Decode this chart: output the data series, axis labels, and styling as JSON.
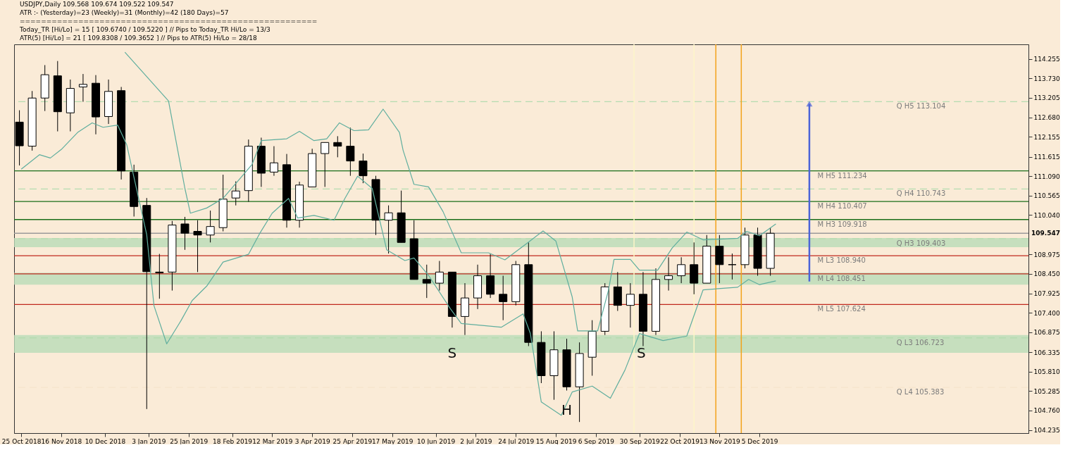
{
  "chart_data": {
    "type": "candlestick",
    "title": "USDJPY,Daily  109.568 109.674 109.522 109.547",
    "annotations": [
      "ATR :- (Yesterday)=23      (Weekly)=31      (Monthly)=42      (180 Days)=57",
      "========================================================",
      "Today_TR [Hi/Lo] = 15 [ 109.6740 / 109.5220 ]   // Pips to Today_TR Hi/Lo  = 13/3",
      "ATR(5) [Hi/Lo] = 21 [ 109.8308 / 109.3652 ]  //  Pips to ATR(5) Hi/Lo      = 28/18",
      {
        "text": "S",
        "x": "2019-06-19",
        "y": 106.3
      },
      {
        "text": "H",
        "x": "2019-08-21",
        "y": 104.75
      },
      {
        "text": "S",
        "x": "2019-10-01",
        "y": 106.3
      }
    ],
    "x": [
      "2018-10-24",
      "2018-10-31",
      "2018-11-07",
      "2018-11-14",
      "2018-11-21",
      "2018-11-28",
      "2018-12-05",
      "2018-12-12",
      "2018-12-19",
      "2018-12-26",
      "2019-01-02",
      "2019-01-09",
      "2019-01-16",
      "2019-01-23",
      "2019-01-30",
      "2019-02-06",
      "2019-02-13",
      "2019-02-20",
      "2019-02-27",
      "2019-03-06",
      "2019-03-13",
      "2019-03-20",
      "2019-03-27",
      "2019-04-03",
      "2019-04-10",
      "2019-04-17",
      "2019-04-24",
      "2019-05-01",
      "2019-05-08",
      "2019-05-15",
      "2019-05-22",
      "2019-05-29",
      "2019-06-05",
      "2019-06-12",
      "2019-06-19",
      "2019-06-26",
      "2019-07-03",
      "2019-07-10",
      "2019-07-17",
      "2019-07-24",
      "2019-07-31",
      "2019-08-07",
      "2019-08-14",
      "2019-08-21",
      "2019-08-28",
      "2019-09-04",
      "2019-09-11",
      "2019-09-18",
      "2019-09-25",
      "2019-10-02",
      "2019-10-09",
      "2019-10-16",
      "2019-10-23",
      "2019-10-30",
      "2019-11-06",
      "2019-11-13",
      "2019-11-20",
      "2019-11-27",
      "2019-12-04",
      "2019-12-11"
    ],
    "ohlc": [
      [
        112.55,
        112.87,
        111.38,
        111.91
      ],
      [
        111.9,
        113.39,
        111.78,
        113.2
      ],
      [
        113.2,
        114.09,
        112.85,
        113.83
      ],
      [
        113.8,
        114.2,
        112.3,
        112.83
      ],
      [
        112.8,
        113.7,
        112.3,
        113.46
      ],
      [
        113.5,
        113.85,
        113.1,
        113.57
      ],
      [
        113.6,
        113.82,
        112.22,
        112.69
      ],
      [
        112.7,
        113.7,
        112.5,
        113.38
      ],
      [
        113.4,
        113.5,
        111.0,
        111.23
      ],
      [
        111.2,
        111.4,
        110.0,
        110.27
      ],
      [
        110.3,
        110.5,
        104.8,
        108.51
      ],
      [
        108.5,
        108.99,
        107.78,
        108.48
      ],
      [
        108.5,
        109.88,
        108.0,
        109.77
      ],
      [
        109.8,
        109.99,
        109.1,
        109.55
      ],
      [
        109.6,
        109.9,
        108.5,
        109.5
      ],
      [
        109.5,
        110.16,
        109.3,
        109.73
      ],
      [
        109.7,
        111.13,
        109.6,
        110.47
      ],
      [
        110.5,
        110.95,
        110.3,
        110.69
      ],
      [
        110.7,
        112.08,
        110.4,
        111.9
      ],
      [
        111.9,
        112.13,
        110.8,
        111.17
      ],
      [
        111.2,
        111.9,
        111.1,
        111.45
      ],
      [
        111.4,
        111.69,
        109.7,
        109.9
      ],
      [
        109.9,
        110.94,
        109.7,
        110.85
      ],
      [
        110.8,
        111.83,
        110.8,
        111.7
      ],
      [
        111.7,
        112.0,
        110.8,
        112.0
      ],
      [
        112.0,
        112.17,
        111.6,
        111.9
      ],
      [
        111.9,
        112.4,
        111.1,
        111.5
      ],
      [
        111.5,
        111.7,
        110.9,
        111.1
      ],
      [
        111.0,
        111.1,
        109.5,
        109.9
      ],
      [
        109.9,
        110.3,
        109.0,
        110.1
      ],
      [
        110.1,
        110.7,
        109.3,
        109.3
      ],
      [
        109.4,
        109.9,
        108.3,
        108.3
      ],
      [
        108.3,
        108.7,
        107.8,
        108.2
      ],
      [
        108.2,
        108.8,
        108.0,
        108.5
      ],
      [
        108.5,
        108.5,
        107.0,
        107.3
      ],
      [
        107.3,
        108.2,
        106.8,
        107.8
      ],
      [
        107.8,
        108.7,
        107.5,
        108.4
      ],
      [
        108.4,
        108.99,
        107.8,
        107.9
      ],
      [
        107.9,
        108.4,
        107.2,
        107.7
      ],
      [
        107.7,
        108.8,
        107.6,
        108.7
      ],
      [
        108.7,
        109.3,
        106.5,
        106.6
      ],
      [
        106.6,
        106.9,
        105.5,
        105.7
      ],
      [
        105.7,
        106.9,
        105.05,
        106.4
      ],
      [
        106.4,
        106.7,
        105.3,
        105.4
      ],
      [
        105.4,
        106.6,
        104.45,
        106.3
      ],
      [
        106.2,
        107.2,
        105.7,
        106.9
      ],
      [
        106.9,
        108.2,
        106.8,
        108.1
      ],
      [
        108.1,
        108.5,
        107.45,
        107.6
      ],
      [
        107.6,
        108.2,
        107.0,
        107.9
      ],
      [
        107.9,
        108.5,
        106.5,
        106.9
      ],
      [
        106.9,
        108.6,
        106.8,
        108.3
      ],
      [
        108.3,
        108.9,
        108.0,
        108.4
      ],
      [
        108.4,
        108.9,
        108.2,
        108.7
      ],
      [
        108.7,
        109.3,
        107.9,
        108.2
      ],
      [
        108.2,
        109.5,
        108.2,
        109.2
      ],
      [
        109.2,
        109.5,
        108.2,
        108.7
      ],
      [
        108.7,
        109.0,
        108.3,
        108.7
      ],
      [
        108.7,
        109.7,
        108.6,
        109.5
      ],
      [
        109.5,
        109.7,
        108.4,
        108.6
      ],
      [
        108.6,
        109.7,
        108.4,
        109.547
      ]
    ],
    "series": [
      {
        "type": "line",
        "color": "#5fae9e",
        "x": [
          "2018-12-21",
          "2019-01-14",
          "2019-01-23",
          "2019-01-26",
          "2019-02-04",
          "2019-02-13",
          "2019-03-01",
          "2019-03-06",
          "2019-03-20",
          "2019-03-27",
          "2019-04-04",
          "2019-04-11",
          "2019-04-18",
          "2019-04-26",
          "2019-05-04",
          "2019-05-12",
          "2019-05-21",
          "2019-05-23",
          "2019-05-29",
          "2019-06-06",
          "2019-06-14",
          "2019-06-24",
          "2019-07-09",
          "2019-07-18",
          "2019-07-30",
          "2019-08-08",
          "2019-08-15",
          "2019-08-24",
          "2019-08-27",
          "2019-09-07",
          "2019-09-13",
          "2019-09-16",
          "2019-09-25",
          "2019-09-30",
          "2019-10-10",
          "2019-10-18",
          "2019-10-26",
          "2019-11-04",
          "2019-11-23",
          "2019-11-28",
          "2019-12-05",
          "2019-12-14"
        ],
        "values": [
          114.44,
          113.12,
          110.76,
          110.09,
          110.23,
          110.49,
          111.41,
          112.05,
          112.1,
          112.3,
          112.05,
          112.1,
          112.53,
          112.32,
          112.34,
          112.9,
          112.27,
          111.79,
          110.87,
          110.8,
          110.13,
          109.02,
          109.02,
          108.83,
          109.27,
          109.61,
          109.34,
          107.83,
          106.91,
          106.91,
          108.02,
          108.84,
          108.84,
          108.55,
          108.55,
          109.15,
          109.58,
          109.37,
          109.41,
          109.6,
          109.48,
          109.8
        ]
      },
      {
        "type": "line",
        "color": "#5fae9e",
        "x": [
          "2018-10-25",
          "2018-11-04",
          "2018-11-10",
          "2018-11-16",
          "2018-11-25",
          "2018-12-03",
          "2018-12-09",
          "2018-12-17",
          "2018-12-22",
          "2019-01-02",
          "2019-01-06",
          "2019-01-13",
          "2019-01-21",
          "2019-01-27",
          "2019-02-04",
          "2019-02-13",
          "2019-02-27",
          "2019-03-05",
          "2019-03-12",
          "2019-03-21",
          "2019-03-26",
          "2019-04-04",
          "2019-04-15",
          "2019-04-21",
          "2019-04-28",
          "2019-05-06",
          "2019-05-14",
          "2019-05-24",
          "2019-05-29",
          "2019-06-06",
          "2019-06-18",
          "2019-06-24",
          "2019-07-16",
          "2019-07-28",
          "2019-08-01",
          "2019-08-07",
          "2019-08-18",
          "2019-08-24",
          "2019-09-04",
          "2019-09-14",
          "2019-09-22",
          "2019-09-30",
          "2019-10-13",
          "2019-10-26",
          "2019-11-04",
          "2019-11-23",
          "2019-11-29",
          "2019-12-05",
          "2019-12-14"
        ],
        "values": [
          111.28,
          111.67,
          111.58,
          111.81,
          112.27,
          112.53,
          112.41,
          112.47,
          111.94,
          109.51,
          107.59,
          106.56,
          107.2,
          107.73,
          108.12,
          108.77,
          108.98,
          109.53,
          110.09,
          110.49,
          109.96,
          110.03,
          109.9,
          110.49,
          111.09,
          110.76,
          109.1,
          108.81,
          108.88,
          108.41,
          107.51,
          107.11,
          107.01,
          107.37,
          106.84,
          104.99,
          104.63,
          105.26,
          105.42,
          105.09,
          105.85,
          106.84,
          106.65,
          106.77,
          108.02,
          108.09,
          108.3,
          108.16,
          108.26
        ]
      }
    ],
    "ref_lines": [
      {
        "axis": "y",
        "value": 113.104,
        "label": "Q  H5 113.104",
        "color": "#b5dcb0",
        "line_style": "dashed"
      },
      {
        "axis": "y",
        "value": 110.743,
        "label": "Q  H4 110.743",
        "color": "#b5dcb0",
        "line_style": "dashed"
      },
      {
        "axis": "y",
        "value": 109.403,
        "label": "Q  H3 109.403",
        "color": "#b5dcb0",
        "line_style": "dashed"
      },
      {
        "axis": "y",
        "value": 106.723,
        "label": "Q  L3 106.723",
        "color": "#b5dcb0",
        "line_style": "dashed"
      },
      {
        "axis": "y",
        "value": 105.383,
        "label": "Q  L4 105.383",
        "color": "#f6e4cc",
        "line_style": "dashed"
      },
      {
        "axis": "y",
        "value": 111.234,
        "label": "M  H5 111.234",
        "color": "#1a6e1a",
        "line_style": "solid"
      },
      {
        "axis": "y",
        "value": 110.407,
        "label": "M  H4 110.407",
        "color": "#1a6e1a",
        "line_style": "solid"
      },
      {
        "axis": "y",
        "value": 109.918,
        "label": "M  H3 109.918",
        "color": "#1a6e1a",
        "line_style": "solid"
      },
      {
        "axis": "y",
        "value": 108.94,
        "label": "M  L3 108.940",
        "color": "#c0281e",
        "line_style": "solid"
      },
      {
        "axis": "y",
        "value": 108.451,
        "label": "M  L4 108.451",
        "color": "#c0281e",
        "line_style": "solid"
      },
      {
        "axis": "y",
        "value": 107.624,
        "label": "M  L5 107.624",
        "color": "#c0281e",
        "line_style": "solid"
      },
      {
        "axis": "y",
        "value": 109.547,
        "label": "109.547",
        "color": "#9a9a9a",
        "line_style": "solid"
      },
      {
        "axis": "x",
        "value": "2019-09-27",
        "color": "#fdf6c8",
        "line_style": "solid"
      },
      {
        "axis": "x",
        "value": "2019-10-30",
        "color": "#fdf6c8",
        "line_style": "solid"
      },
      {
        "axis": "x",
        "value": "2019-11-11",
        "color": "#f2a31b",
        "line_style": "solid"
      },
      {
        "axis": "x",
        "value": "2019-11-25",
        "color": "#f2a31b",
        "line_style": "solid"
      }
    ],
    "bands": [
      {
        "axis": "y",
        "from": 106.32,
        "to": 106.8,
        "color": "#b9dcb8"
      },
      {
        "axis": "y",
        "from": 109.17,
        "to": 109.42,
        "color": "#b9dcb8"
      },
      {
        "axis": "y",
        "from": 108.16,
        "to": 108.48,
        "color": "#b9dcb8"
      }
    ],
    "xlim": [
      "2018-10-23",
      "2020-04-29"
    ],
    "xticks": [
      {
        "value": "2018-10-25",
        "label": "25 Oct 2018"
      },
      {
        "value": "2018-11-16",
        "label": "16 Nov 2018"
      },
      {
        "value": "2018-12-10",
        "label": "10 Dec 2018"
      },
      {
        "value": "2019-01-03",
        "label": "3 Jan 2019"
      },
      {
        "value": "2019-01-25",
        "label": "25 Jan 2019"
      },
      {
        "value": "2019-02-18",
        "label": "18 Feb 2019"
      },
      {
        "value": "2019-03-12",
        "label": "12 Mar 2019"
      },
      {
        "value": "2019-04-03",
        "label": "3 Apr 2019"
      },
      {
        "value": "2019-04-25",
        "label": "25 Apr 2019"
      },
      {
        "value": "2019-05-17",
        "label": "17 May 2019"
      },
      {
        "value": "2019-06-10",
        "label": "10 Jun 2019"
      },
      {
        "value": "2019-07-02",
        "label": "2 Jul 2019"
      },
      {
        "value": "2019-07-24",
        "label": "24 Jul 2019"
      },
      {
        "value": "2019-08-15",
        "label": "15 Aug 2019"
      },
      {
        "value": "2019-09-06",
        "label": "6 Sep 2019"
      },
      {
        "value": "2019-09-30",
        "label": "30 Sep 2019"
      },
      {
        "value": "2019-10-22",
        "label": "22 Oct 2019"
      },
      {
        "value": "2019-11-13",
        "label": "13 Nov 2019"
      },
      {
        "value": "2019-12-05",
        "label": "5 Dec 2019"
      }
    ],
    "ylim": [
      104.15,
      114.65
    ],
    "yticks": [
      104.235,
      {
        "value": 104.76,
        "label": "104.760"
      },
      105.285,
      {
        "value": 105.81,
        "label": "105.810"
      },
      106.335,
      106.875,
      {
        "value": 107.4,
        "label": "107.400"
      },
      107.925,
      {
        "value": 108.45,
        "label": "108.450"
      },
      108.975,
      {
        "value": 110.04,
        "label": "110.040"
      },
      110.565,
      {
        "value": 111.09,
        "label": "111.090"
      },
      111.615,
      112.155,
      {
        "value": 112.68,
        "label": "112.680"
      },
      113.205,
      {
        "value": 113.73,
        "label": "113.730"
      },
      114.255
    ],
    "grid": false
  }
}
